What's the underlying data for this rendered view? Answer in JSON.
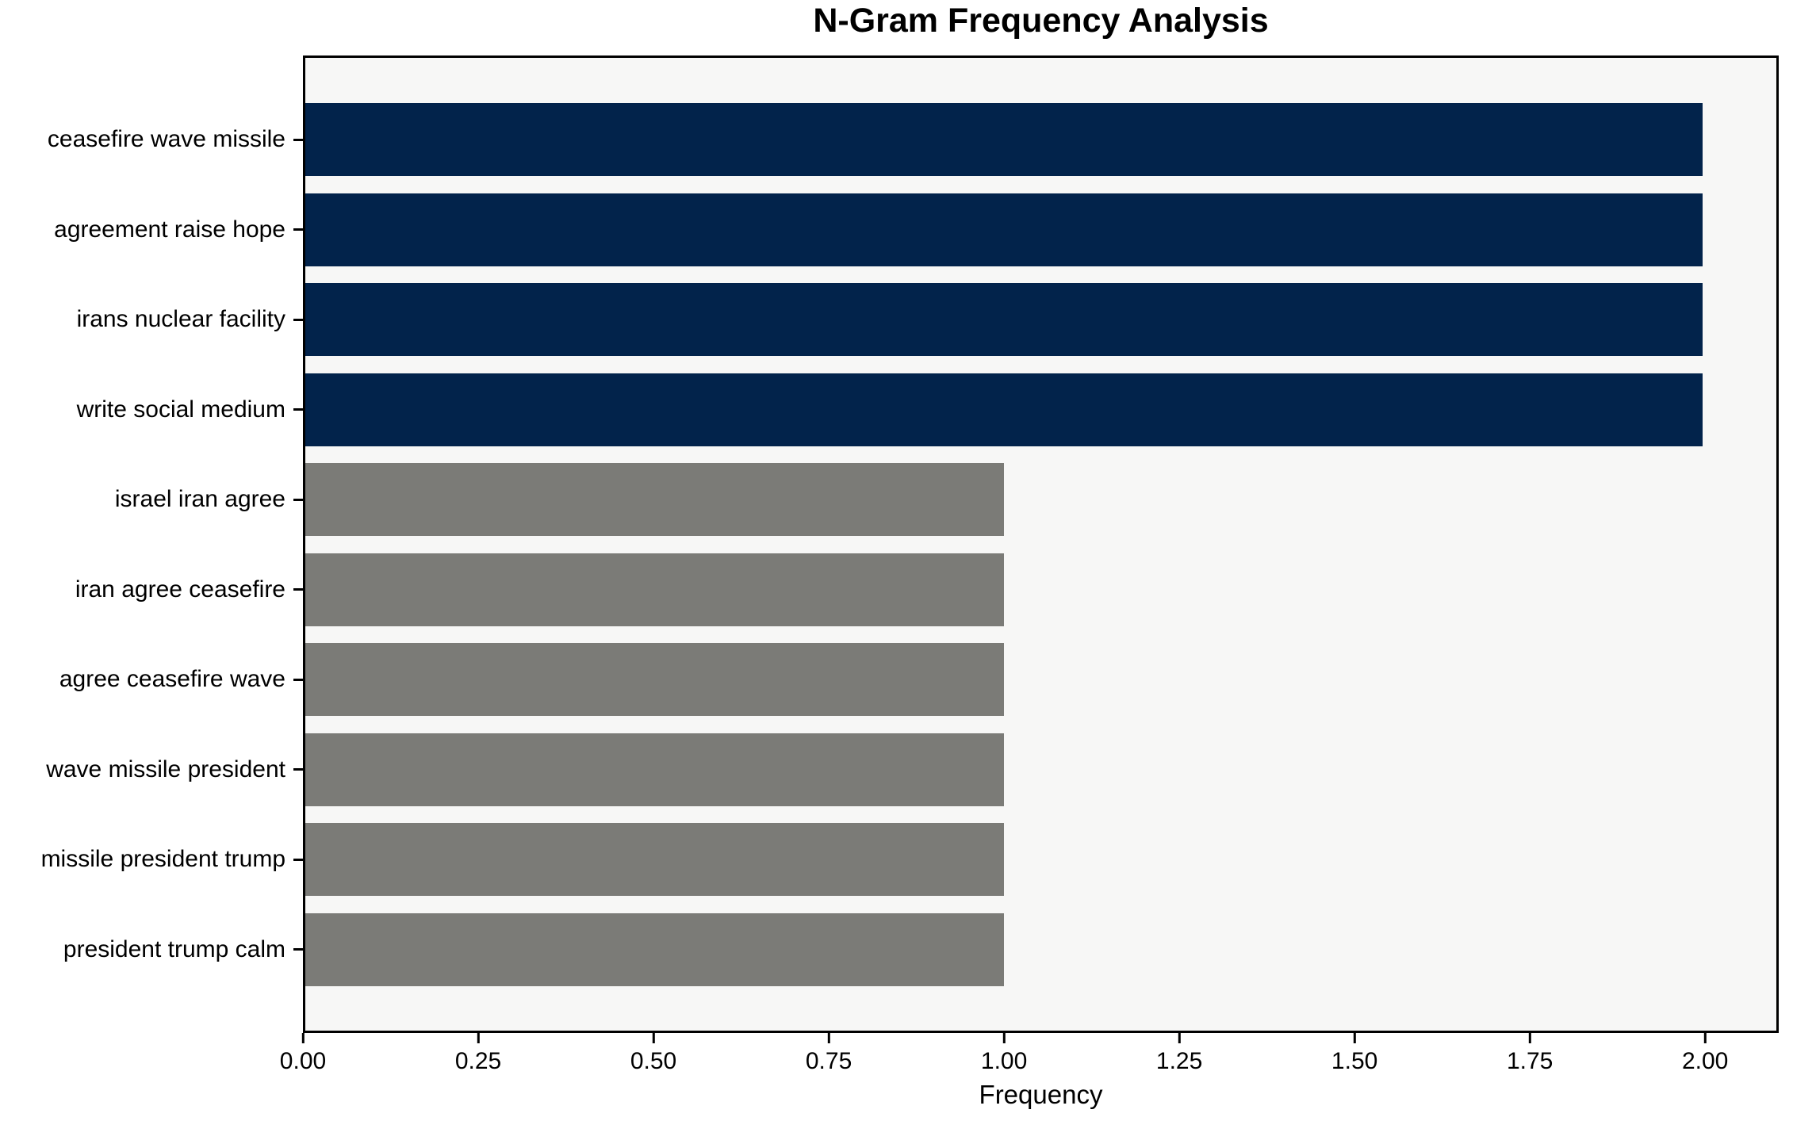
{
  "title": "N-Gram Frequency Analysis",
  "chart_data": {
    "type": "bar",
    "orientation": "horizontal",
    "title": "N-Gram Frequency Analysis",
    "xlabel": "Frequency",
    "ylabel": "",
    "grid": false,
    "legend": null,
    "plot_background": "#f7f7f6",
    "figure_background": "#ffffff",
    "categories": [
      "ceasefire wave missile",
      "agreement raise hope",
      "irans nuclear facility",
      "write social medium",
      "israel iran agree",
      "iran agree ceasefire",
      "agree ceasefire wave",
      "wave missile president",
      "missile president trump",
      "president trump calm"
    ],
    "values": [
      2,
      2,
      2,
      2,
      1,
      1,
      1,
      1,
      1,
      1
    ],
    "bar_colors": [
      "#02234b",
      "#02234b",
      "#02234b",
      "#02234b",
      "#7b7b77",
      "#7b7b77",
      "#7b7b77",
      "#7b7b77",
      "#7b7b77",
      "#7b7b77"
    ],
    "highlight_color": "#02234b",
    "default_color": "#7b7b77",
    "xlim": [
      0,
      2.105
    ],
    "xticks": [
      0,
      0.25,
      0.5,
      0.75,
      1.0,
      1.25,
      1.5,
      1.75,
      2.0
    ],
    "xtick_labels": [
      "0.00",
      "0.25",
      "0.50",
      "0.75",
      "1.00",
      "1.25",
      "1.50",
      "1.75",
      "2.00"
    ]
  }
}
